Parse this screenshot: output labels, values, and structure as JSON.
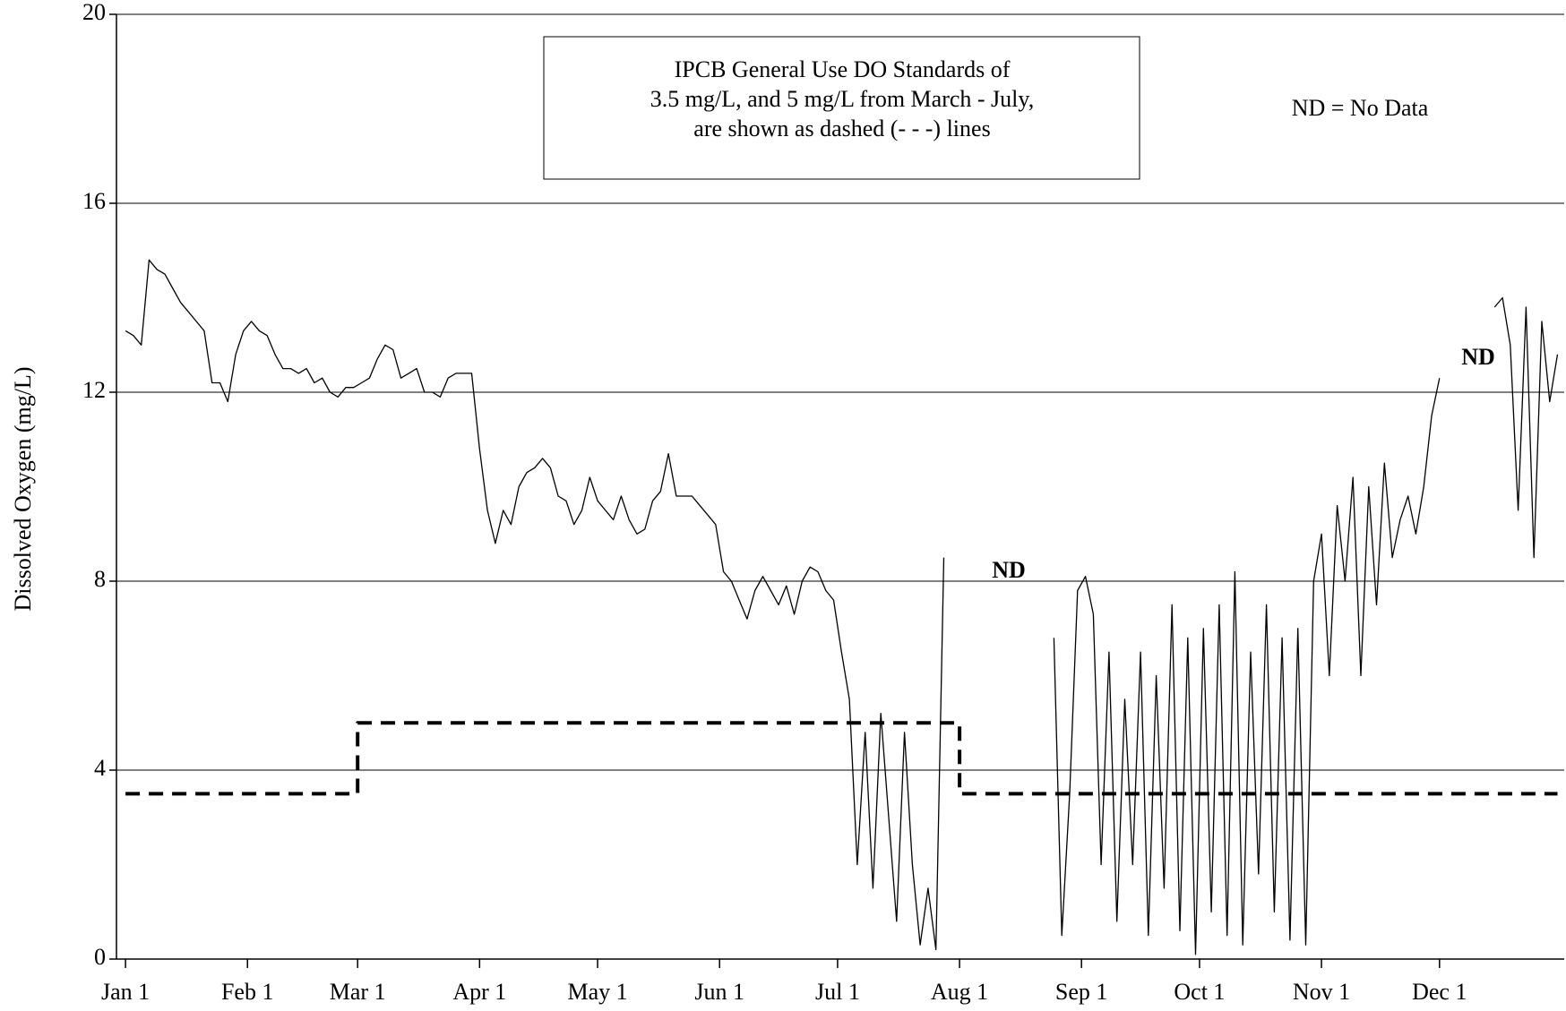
{
  "chart_data": {
    "type": "line",
    "ylabel": "Dissolved Oxygen (mg/L)",
    "xlim": [
      -2.3,
      365.7
    ],
    "ylim": [
      0,
      20
    ],
    "xticks": [
      {
        "value": 0,
        "label": "Jan 1"
      },
      {
        "value": 31,
        "label": "Feb 1"
      },
      {
        "value": 59,
        "label": "Mar 1"
      },
      {
        "value": 90,
        "label": "Apr 1"
      },
      {
        "value": 120,
        "label": "May 1"
      },
      {
        "value": 151,
        "label": "Jun 1"
      },
      {
        "value": 181,
        "label": "Jul 1"
      },
      {
        "value": 212,
        "label": "Aug 1"
      },
      {
        "value": 243,
        "label": "Sep 1"
      },
      {
        "value": 273,
        "label": "Oct 1"
      },
      {
        "value": 304,
        "label": "Nov 1"
      },
      {
        "value": 334,
        "label": "Dec 1"
      }
    ],
    "yticks": [
      0,
      4,
      8,
      12,
      16,
      20
    ],
    "grid": true,
    "note_lines": [
      "IPCB General Use DO Standards of",
      "3.5 mg/L, and 5 mg/L from March - July,",
      "are shown as dashed (- - -) lines"
    ],
    "legend_note": "ND = No Data",
    "annotations": [
      "ND",
      "ND"
    ],
    "series": [
      {
        "color": "#000000",
        "dash": false,
        "x": [
          0,
          2,
          4,
          6,
          8,
          10,
          12,
          14,
          16,
          18,
          20,
          22,
          24,
          26,
          28,
          30,
          32,
          34,
          36,
          38,
          40,
          42,
          44,
          46,
          48,
          50,
          52,
          54,
          56,
          58,
          60,
          62,
          64,
          66,
          68,
          70,
          72,
          74,
          76,
          78,
          80,
          82,
          84,
          86,
          88,
          90,
          92,
          94,
          96,
          98,
          100,
          102,
          104,
          106,
          108,
          110,
          112,
          114,
          116,
          118,
          120,
          122,
          124,
          126,
          128,
          130,
          132,
          134,
          136,
          138,
          140,
          142,
          144,
          146,
          148,
          150,
          152,
          154,
          156,
          158,
          160,
          162,
          164,
          166,
          168,
          170,
          172,
          174,
          176,
          178,
          180,
          182,
          184,
          186,
          188,
          190,
          192,
          194,
          196,
          198,
          200,
          202,
          204,
          206,
          208,
          210,
          212,
          214,
          216,
          218,
          220,
          222,
          224,
          226,
          228,
          230,
          232,
          234,
          236,
          238,
          240,
          242,
          244,
          246,
          248,
          250,
          252,
          254,
          256,
          258,
          260,
          262,
          264,
          266,
          268,
          270,
          272,
          274,
          276,
          278,
          280,
          282,
          284,
          286,
          288,
          290,
          292,
          294,
          296,
          298,
          300,
          302,
          304,
          306,
          308,
          310,
          312,
          314,
          316,
          318,
          320,
          322,
          324,
          326,
          328,
          330,
          332,
          334,
          336,
          338,
          340,
          342,
          344,
          346,
          348,
          350,
          352,
          354,
          356,
          358,
          360,
          362,
          364
        ],
        "values": [
          13.3,
          13.2,
          13.0,
          14.8,
          14.6,
          14.5,
          14.2,
          13.9,
          13.7,
          13.5,
          13.3,
          12.2,
          12.2,
          11.8,
          12.8,
          13.3,
          13.5,
          13.3,
          13.2,
          12.8,
          12.5,
          12.5,
          12.4,
          12.5,
          12.2,
          12.3,
          12.0,
          11.9,
          12.1,
          12.1,
          12.2,
          12.3,
          12.7,
          13.0,
          12.9,
          12.3,
          12.4,
          12.5,
          12.0,
          12.0,
          11.9,
          12.3,
          12.4,
          12.4,
          12.4,
          10.8,
          9.5,
          8.8,
          9.5,
          9.2,
          10.0,
          10.3,
          10.4,
          10.6,
          10.4,
          9.8,
          9.7,
          9.2,
          9.5,
          10.2,
          9.7,
          9.5,
          9.3,
          9.8,
          9.3,
          9.0,
          9.1,
          9.7,
          9.9,
          10.7,
          9.8,
          9.8,
          9.8,
          9.6,
          9.4,
          9.2,
          8.2,
          8.0,
          7.6,
          7.2,
          7.8,
          8.1,
          7.8,
          7.5,
          7.9,
          7.3,
          8.0,
          8.3,
          8.2,
          7.8,
          7.6,
          6.5,
          5.5,
          2.0,
          4.8,
          1.5,
          5.2,
          3.0,
          0.8,
          4.8,
          2.0,
          0.3,
          1.5,
          0.2,
          8.5,
          null,
          null,
          null,
          null,
          null,
          null,
          null,
          null,
          null,
          null,
          null,
          null,
          null,
          6.8,
          0.5,
          3.5,
          7.8,
          8.1,
          7.3,
          2.0,
          6.5,
          0.8,
          5.5,
          2.0,
          6.5,
          0.5,
          6.0,
          1.5,
          7.5,
          0.6,
          6.8,
          0.1,
          7.0,
          1.0,
          7.5,
          0.5,
          8.2,
          0.3,
          6.5,
          1.8,
          7.5,
          1.0,
          6.8,
          0.4,
          7.0,
          0.3,
          8.0,
          9.0,
          6.0,
          9.6,
          8.0,
          10.2,
          6.0,
          10.0,
          7.5,
          10.5,
          8.5,
          9.3,
          9.8,
          9.0,
          10.0,
          11.5,
          12.3,
          null,
          null,
          null,
          null,
          null,
          null,
          13.8,
          14.0,
          13.0,
          9.5,
          13.8,
          8.5,
          13.5,
          11.8,
          12.8
        ]
      },
      {
        "color": "#000000",
        "dash": true,
        "x": [
          0,
          59,
          59,
          212,
          212,
          364
        ],
        "values": [
          3.5,
          3.5,
          5,
          5,
          3.5,
          3.5
        ]
      }
    ]
  }
}
